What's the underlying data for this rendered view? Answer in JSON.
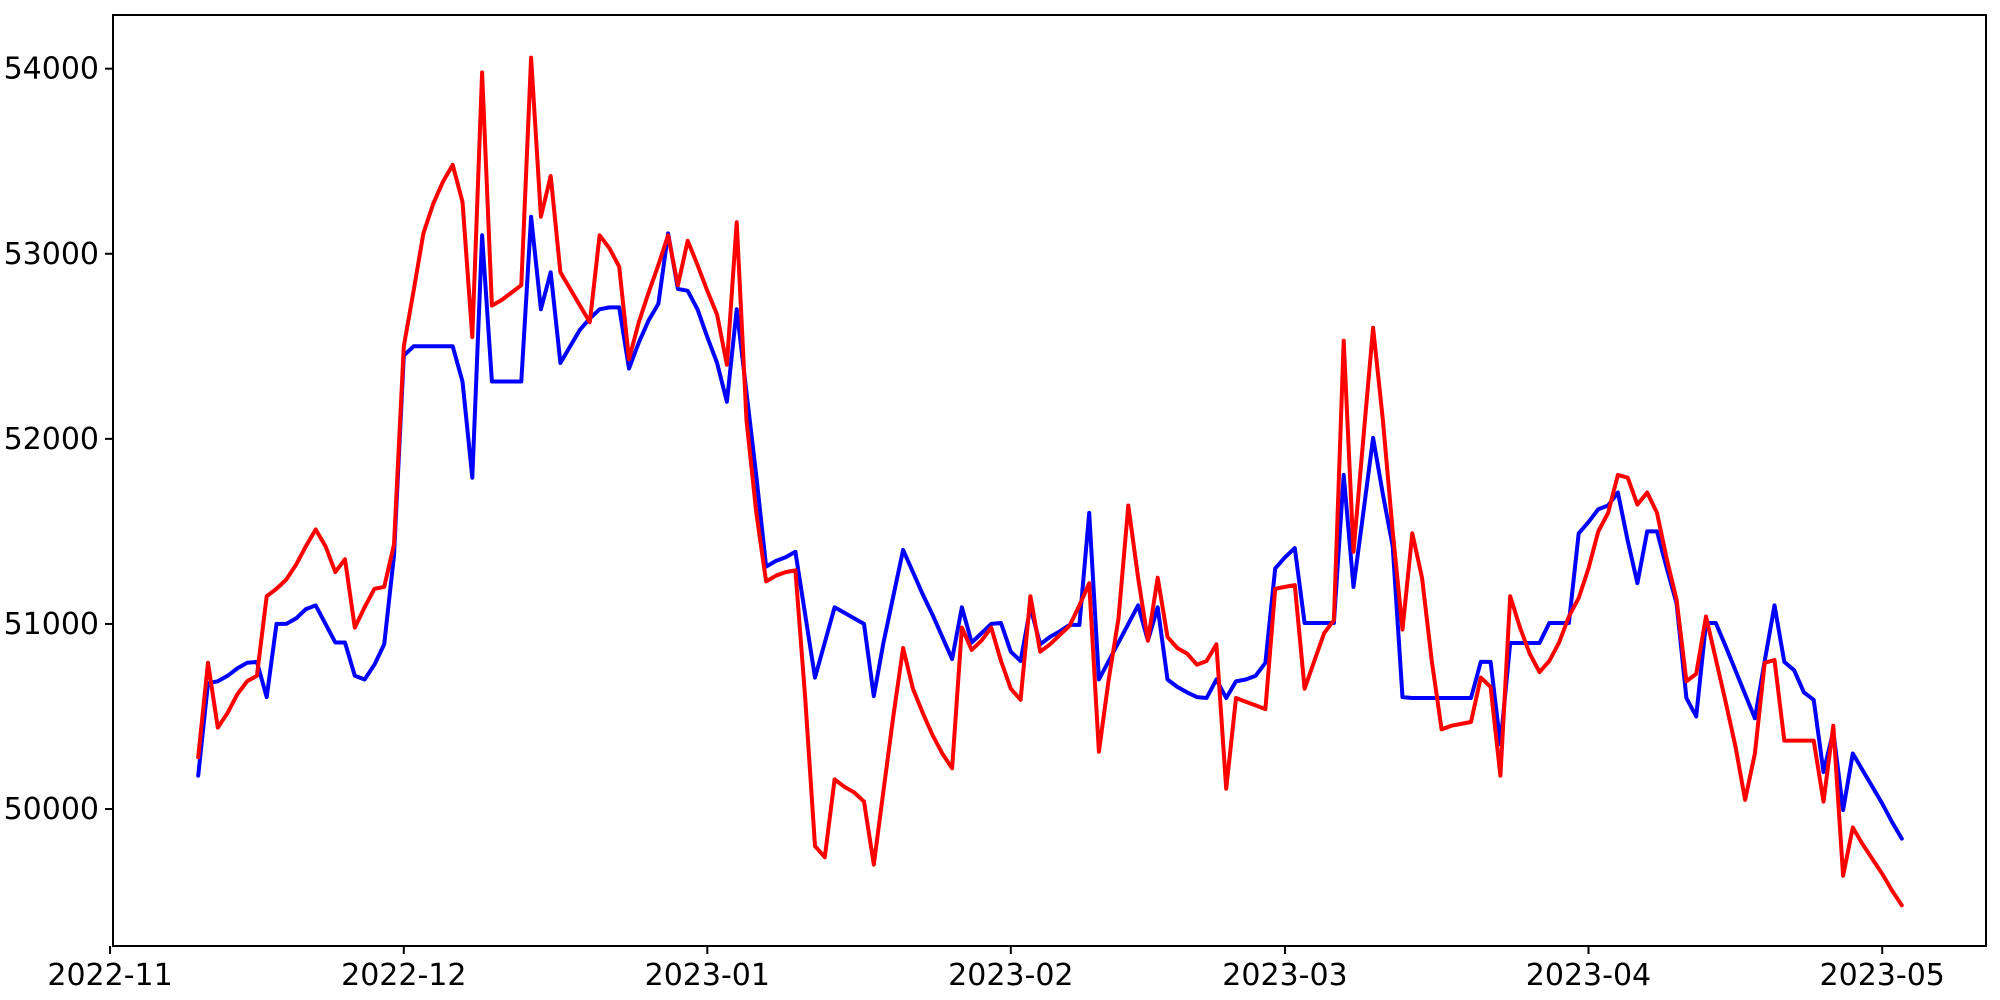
{
  "chart_data": {
    "type": "line",
    "title": "",
    "xlabel": "",
    "ylabel": "",
    "grid": false,
    "legend": null,
    "background_color": "#ffffff",
    "axis_color": "#000000",
    "x_axis": {
      "unit": "date",
      "start_date": "2022-11-10",
      "step_days": 1,
      "n_points": 175,
      "tick_labels": [
        "2022-11",
        "2022-12",
        "2023-01",
        "2023-02",
        "2023-03",
        "2023-04",
        "2023-05"
      ],
      "tick_day_offsets": [
        0,
        30,
        61,
        92,
        120,
        151,
        181
      ],
      "xlim_day_offsets": [
        0.3,
        191.6
      ]
    },
    "y_axis": {
      "tick_labels": [
        "50000",
        "51000",
        "52000",
        "53000",
        "54000"
      ],
      "tick_values": [
        50000,
        51000,
        52000,
        53000,
        54000
      ],
      "ylim": [
        49260,
        54290
      ]
    },
    "series": [
      {
        "name": "series-red",
        "color": "#ff0000",
        "line_width": 4,
        "values": [
          50280,
          50790,
          50440,
          50520,
          50620,
          50690,
          50720,
          51150,
          51190,
          51240,
          51320,
          51420,
          51510,
          51420,
          51280,
          51350,
          50980,
          51090,
          51190,
          51200,
          51430,
          52500,
          52800,
          53110,
          53270,
          53390,
          53480,
          53280,
          52550,
          53980,
          52720,
          52750,
          52790,
          52830,
          54060,
          53200,
          53420,
          52900,
          52810,
          52720,
          52630,
          53100,
          53030,
          52930,
          52430,
          52630,
          52790,
          52940,
          53100,
          52830,
          53070,
          52940,
          52800,
          52670,
          52400,
          53170,
          52100,
          51600,
          51230,
          51260,
          51280,
          51290,
          50600,
          49800,
          49740,
          50160,
          50120,
          50090,
          50040,
          49700,
          50100,
          50500,
          50870,
          50650,
          50520,
          50400,
          50300,
          50220,
          50980,
          50860,
          50910,
          50980,
          50800,
          50650,
          50590,
          51150,
          50850,
          50890,
          50940,
          50990,
          51100,
          51220,
          50310,
          50700,
          51030,
          51640,
          51250,
          50910,
          51250,
          50930,
          50870,
          50840,
          50780,
          50800,
          50890,
          50110,
          50600,
          50580,
          50560,
          50540,
          51190,
          51200,
          51210,
          50650,
          50800,
          50950,
          51020,
          52530,
          51390,
          52000,
          52600,
          52100,
          51500,
          50970,
          51490,
          51250,
          50800,
          50430,
          50450,
          50460,
          50470,
          50710,
          50660,
          50180,
          51150,
          50980,
          50840,
          50740,
          50800,
          50900,
          51040,
          51140,
          51300,
          51500,
          51600,
          51805,
          51790,
          51645,
          51710,
          51600,
          51350,
          51130,
          50690,
          50730,
          51040,
          50810,
          50580,
          50340,
          50050,
          50300,
          50790,
          50805,
          50370,
          50370,
          50370,
          50370,
          50040,
          50450,
          49640,
          49900,
          49810,
          49730,
          49650,
          49560,
          49480
        ]
      },
      {
        "name": "series-blue",
        "color": "#0000ff",
        "line_width": 4,
        "values": [
          50180,
          50680,
          50690,
          50720,
          50760,
          50790,
          50795,
          50605,
          51000,
          51000,
          51030,
          51080,
          51100,
          51000,
          50900,
          50900,
          50720,
          50700,
          50780,
          50890,
          51370,
          52450,
          52500,
          52500,
          52500,
          52500,
          52500,
          52310,
          51790,
          53100,
          52310,
          52310,
          52310,
          52310,
          53200,
          52700,
          52900,
          52410,
          52500,
          52590,
          52650,
          52700,
          52710,
          52710,
          52380,
          52520,
          52640,
          52730,
          53110,
          52810,
          52800,
          52700,
          52550,
          52410,
          52200,
          52700,
          52250,
          51800,
          51310,
          51340,
          51360,
          51390,
          51050,
          50710,
          50900,
          51090,
          51060,
          51030,
          51000,
          50610,
          50900,
          51150,
          51400,
          51280,
          51160,
          51050,
          50930,
          50810,
          51090,
          50900,
          50950,
          51000,
          51005,
          50850,
          50800,
          51090,
          50890,
          50930,
          50960,
          50995,
          50995,
          51600,
          50700,
          50800,
          50900,
          51000,
          51100,
          50910,
          51090,
          50700,
          50660,
          50630,
          50605,
          50600,
          50700,
          50600,
          50690,
          50700,
          50720,
          50790,
          51300,
          51360,
          51410,
          51005,
          51005,
          51005,
          51005,
          51805,
          51200,
          51600,
          52005,
          51700,
          51420,
          50605,
          50600,
          50600,
          50600,
          50600,
          50600,
          50600,
          50600,
          50795,
          50795,
          50350,
          50897,
          50897,
          50897,
          50897,
          51005,
          51005,
          51005,
          51490,
          51550,
          51620,
          51640,
          51710,
          51450,
          51220,
          51500,
          51500,
          51300,
          51110,
          50600,
          50500,
          51005,
          51005,
          50880,
          50750,
          50620,
          50490,
          50800,
          51100,
          50795,
          50750,
          50630,
          50590,
          50200,
          50420,
          49995,
          50300,
          50210,
          50120,
          50030,
          49930,
          49840
        ]
      }
    ]
  }
}
